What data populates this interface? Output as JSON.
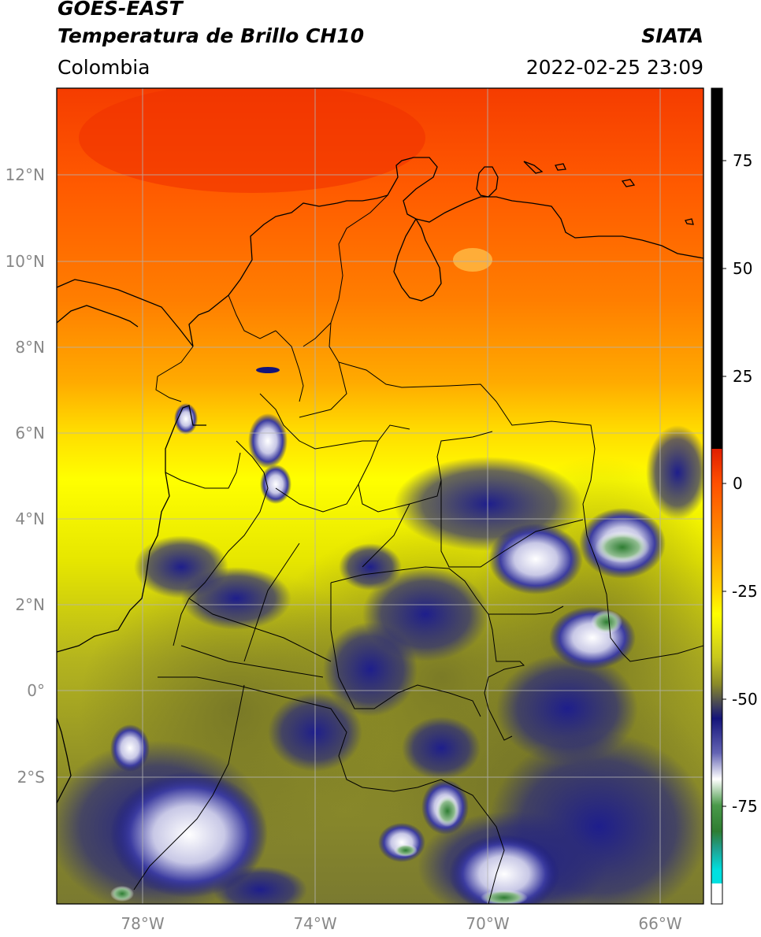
{
  "header": {
    "satellite": "GOES-EAST",
    "product": "Temperatura de Brillo CH10",
    "region": "Colombia",
    "agency": "SIATA",
    "datetime": "2022-02-25 23:09"
  },
  "map": {
    "lat_labels": [
      "12°N",
      "10°N",
      "8°N",
      "6°N",
      "4°N",
      "2°N",
      "0°",
      "2°S"
    ],
    "lon_labels": [
      "78°W",
      "74°W",
      "70°W",
      "66°W"
    ],
    "extent": {
      "lon_min": -80,
      "lon_max": -65,
      "lat_min": -5,
      "lat_max": 14
    }
  },
  "colorbar": {
    "ticks": [
      "75",
      "50",
      "25",
      "0",
      "-25",
      "-50",
      "-75"
    ],
    "segments": [
      {
        "color": "#000000"
      },
      {
        "color": "#e01e00"
      },
      {
        "color": "#ff8c00"
      },
      {
        "color": "#ffff00"
      },
      {
        "color": "#8c8c1e"
      },
      {
        "color": "#14147a"
      },
      {
        "color": "#ffffff"
      },
      {
        "color": "#2e7d32"
      },
      {
        "color": "#00ced1"
      },
      {
        "color": "#ffffff"
      }
    ]
  }
}
